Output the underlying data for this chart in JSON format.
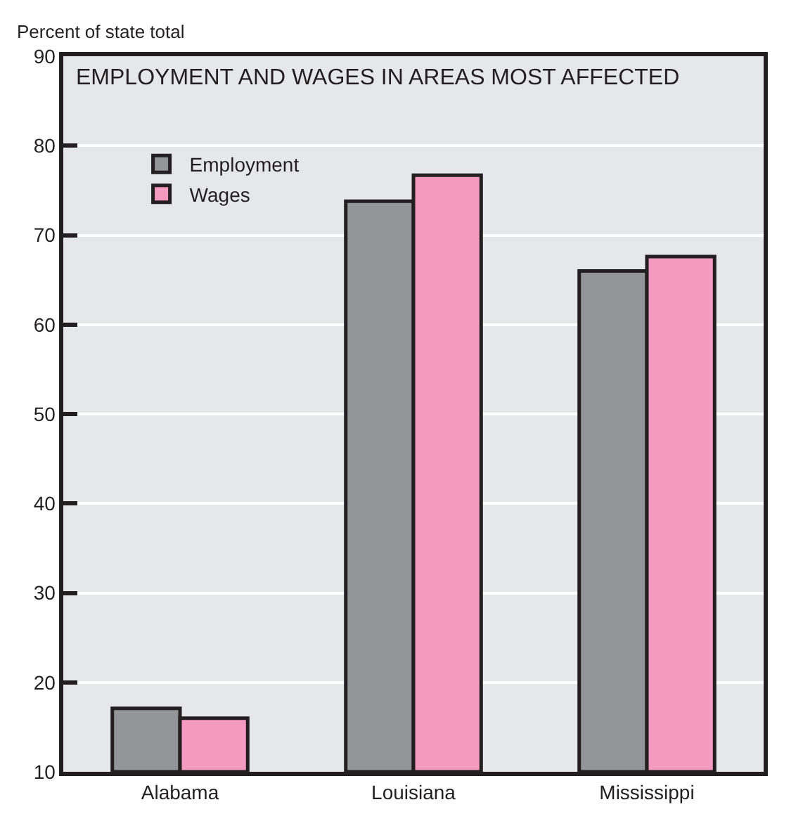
{
  "chart_data": {
    "type": "bar",
    "title": "EMPLOYMENT AND WAGES IN AREAS MOST AFFECTED",
    "ylabel": "Percent of state total",
    "categories": [
      "Alabama",
      "Louisiana",
      "Mississippi"
    ],
    "series": [
      {
        "name": "Employment",
        "color": "#939598",
        "values": [
          17.1,
          73.8,
          66.0
        ]
      },
      {
        "name": "Wages",
        "color": "#f49ac1",
        "values": [
          16.0,
          76.7,
          67.6
        ]
      }
    ],
    "ylim": [
      10,
      90
    ],
    "yticks": [
      10,
      20,
      30,
      40,
      50,
      60,
      70,
      80,
      90
    ],
    "grid": "y",
    "legend": "top left"
  }
}
